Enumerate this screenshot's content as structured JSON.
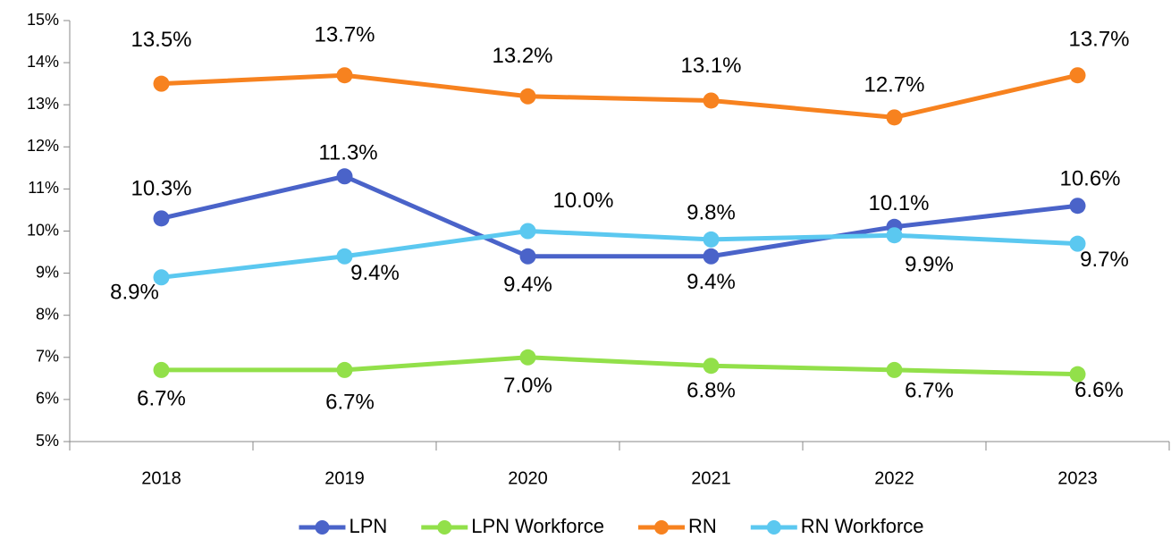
{
  "chart_data": {
    "type": "line",
    "categories": [
      "2018",
      "2019",
      "2020",
      "2021",
      "2022",
      "2023"
    ],
    "series": [
      {
        "name": "LPN",
        "color": "#4a63c9",
        "values": [
          10.3,
          11.3,
          9.4,
          9.4,
          10.1,
          10.6
        ],
        "value_labels": [
          "10.3%",
          "11.3%",
          "9.4%",
          "9.4%",
          "10.1%",
          "10.6%"
        ]
      },
      {
        "name": "LPN Workforce",
        "color": "#92e04a",
        "values": [
          6.7,
          6.7,
          7.0,
          6.8,
          6.7,
          6.6
        ],
        "value_labels": [
          "6.7%",
          "6.7%",
          "7.0%",
          "6.8%",
          "6.7%",
          "6.6%"
        ]
      },
      {
        "name": "RN",
        "color": "#f7821f",
        "values": [
          13.5,
          13.7,
          13.2,
          13.1,
          12.7,
          13.7
        ],
        "value_labels": [
          "13.5%",
          "13.7%",
          "13.2%",
          "13.1%",
          "12.7%",
          "13.7%"
        ]
      },
      {
        "name": "RN Workforce",
        "color": "#5bc8f0",
        "values": [
          8.9,
          9.4,
          10.0,
          9.8,
          9.9,
          9.7
        ],
        "value_labels": [
          "8.9%",
          "9.4%",
          "10.0%",
          "9.8%",
          "9.9%",
          "9.7%"
        ]
      }
    ],
    "ylim": [
      5,
      15
    ],
    "yticks": [
      {
        "value": 5,
        "label": "5%"
      },
      {
        "value": 6,
        "label": "6%"
      },
      {
        "value": 7,
        "label": "7%"
      },
      {
        "value": 8,
        "label": "8%"
      },
      {
        "value": 9,
        "label": "9%"
      },
      {
        "value": 10,
        "label": "10%"
      },
      {
        "value": 11,
        "label": "11%"
      },
      {
        "value": 12,
        "label": "12%"
      },
      {
        "value": 13,
        "label": "13%"
      },
      {
        "value": 14,
        "label": "14%"
      },
      {
        "value": 15,
        "label": "15%"
      }
    ],
    "grid": false,
    "legend": "bottom"
  }
}
